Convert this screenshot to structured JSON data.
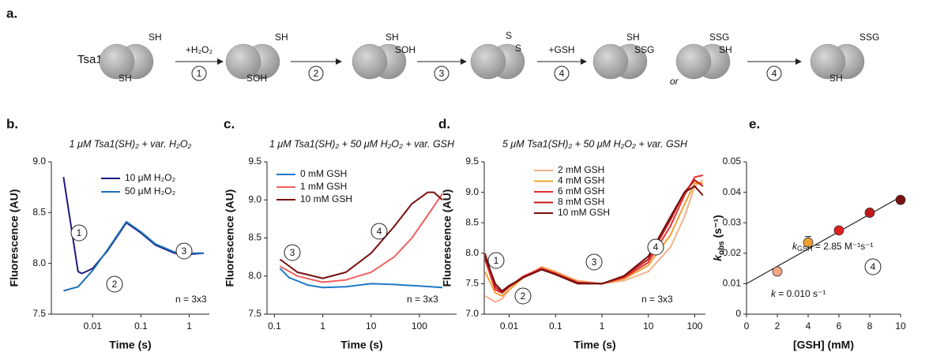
{
  "scheme": {
    "label": "a.",
    "protein": "Tsa1",
    "groups": [
      [
        "SH",
        "SH"
      ],
      [
        "SH",
        "SOH"
      ],
      [
        "SH",
        "SOH"
      ],
      [
        "S",
        "S"
      ],
      [
        "SH",
        "SSG"
      ],
      [
        "SSG",
        "SH"
      ],
      [
        "SSG",
        "SH"
      ]
    ],
    "arrows": [
      {
        "reagent": "+H₂O₂",
        "step": "1"
      },
      {
        "step": "2"
      },
      {
        "step": "3"
      },
      {
        "reagent": "+GSH",
        "step": "4"
      },
      {
        "step": "4"
      }
    ],
    "or": "or"
  },
  "chart_data": [
    {
      "type": "line",
      "panel": "b.",
      "title": "1 μM Tsa1(SH)₂ + var. H₂O₂",
      "xlabel": "Time (s)",
      "ylabel": "Fluorescence (AU)",
      "log_x": true,
      "xlim": [
        0.0014,
        2.6
      ],
      "xticks": [
        0.01,
        0.1,
        1
      ],
      "ylim": [
        7.5,
        9.0
      ],
      "yticks": [
        7.5,
        {
          "value": 8,
          "label": "8.0"
        },
        8.5,
        {
          "value": 9,
          "label": "9.0"
        }
      ],
      "series": [
        {
          "name": "10 μM H₂O₂",
          "color": "#1b1b80",
          "x": [
            0.0025,
            0.005,
            0.006,
            0.01,
            0.02,
            0.05,
            0.1,
            0.2,
            0.5,
            1,
            2
          ],
          "values": [
            8.85,
            7.92,
            7.9,
            7.95,
            8.12,
            8.4,
            8.3,
            8.18,
            8.1,
            8.09,
            8.1
          ]
        },
        {
          "name": "50 μM H₂O₂",
          "color": "#1f6fb5",
          "x": [
            0.0025,
            0.005,
            0.01,
            0.02,
            0.05,
            0.1,
            0.2,
            0.5,
            1,
            2
          ],
          "values": [
            7.73,
            7.77,
            7.93,
            8.13,
            8.41,
            8.31,
            8.19,
            8.11,
            8.1,
            8.1
          ]
        }
      ],
      "annotations": [
        "1",
        "2",
        "3"
      ],
      "note": "n = 3x3"
    },
    {
      "type": "line",
      "panel": "c.",
      "title": "1 μM Tsa1(SH)₂ + 50 μM H₂O₂ + var. GSH",
      "xlabel": "Time (s)",
      "ylabel": "Fluorescence (AU)",
      "log_x": true,
      "xlim": [
        0.07,
        590
      ],
      "xticks": [
        0.1,
        1,
        10,
        100
      ],
      "ylim": [
        7.5,
        9.5
      ],
      "yticks": [
        7.5,
        {
          "value": 8,
          "label": "8.0"
        },
        8.5,
        {
          "value": 9,
          "label": "9.0"
        },
        9.5
      ],
      "series": [
        {
          "name": "0 mM GSH",
          "color": "#1f78c8",
          "x": [
            0.13,
            0.2,
            0.5,
            1,
            3,
            10,
            30,
            100,
            300
          ],
          "values": [
            8.1,
            7.98,
            7.88,
            7.85,
            7.86,
            7.9,
            7.89,
            7.87,
            7.85
          ]
        },
        {
          "name": "1 mM GSH",
          "color": "#f06060",
          "x": [
            0.13,
            0.3,
            1,
            3,
            10,
            30,
            70,
            150,
            300
          ],
          "values": [
            8.13,
            8.0,
            7.92,
            7.95,
            8.05,
            8.25,
            8.5,
            8.8,
            9.08
          ]
        },
        {
          "name": "10 mM GSH",
          "color": "#7a1010",
          "x": [
            0.13,
            0.3,
            1,
            3,
            10,
            30,
            70,
            150,
            200,
            300
          ],
          "values": [
            8.22,
            8.05,
            7.97,
            8.05,
            8.3,
            8.65,
            8.95,
            9.1,
            9.1,
            9.0
          ]
        }
      ],
      "annotations": [
        "3",
        "4"
      ],
      "note": "n = 3x3"
    },
    {
      "type": "line",
      "panel": "d.",
      "title": "5 μM Tsa1(SH)₂ + 50 μM H₂O₂ + var. GSH",
      "xlabel": "Time (s)",
      "ylabel": "Fluorescence (AU)",
      "log_x": true,
      "xlim": [
        0.0029,
        170
      ],
      "xticks": [
        0.01,
        0.1,
        1,
        10,
        100
      ],
      "ylim": [
        7.0,
        9.5
      ],
      "yticks": [
        {
          "value": 7,
          "label": "7.0"
        },
        7.5,
        {
          "value": 8,
          "label": "8.0"
        },
        8.5,
        {
          "value": 9,
          "label": "9.0"
        },
        9.5
      ],
      "series": [
        {
          "name": "2 mM GSH",
          "color": "#f5b08a",
          "x": [
            0.003,
            0.005,
            0.007,
            0.01,
            0.02,
            0.05,
            0.1,
            0.3,
            1,
            3,
            10,
            30,
            60,
            100,
            150
          ],
          "values": [
            7.3,
            7.2,
            7.25,
            7.4,
            7.6,
            7.78,
            7.7,
            7.55,
            7.5,
            7.55,
            7.7,
            8.1,
            8.6,
            9.1,
            9.2
          ]
        },
        {
          "name": "4 mM GSH",
          "color": "#f0a030",
          "x": [
            0.003,
            0.005,
            0.007,
            0.01,
            0.02,
            0.05,
            0.1,
            0.3,
            1,
            3,
            10,
            30,
            60,
            100,
            150
          ],
          "values": [
            7.7,
            7.35,
            7.3,
            7.4,
            7.6,
            7.76,
            7.68,
            7.53,
            7.5,
            7.58,
            7.8,
            8.3,
            8.8,
            9.15,
            9.15
          ]
        },
        {
          "name": "6 mM GSH",
          "color": "#e83030",
          "x": [
            0.003,
            0.005,
            0.007,
            0.01,
            0.02,
            0.05,
            0.1,
            0.3,
            1,
            3,
            10,
            30,
            60,
            100,
            150
          ],
          "values": [
            7.9,
            7.4,
            7.35,
            7.45,
            7.62,
            7.75,
            7.67,
            7.52,
            7.5,
            7.6,
            7.85,
            8.45,
            8.95,
            9.25,
            9.28
          ]
        },
        {
          "name": "8 mM GSH",
          "color": "#c01818",
          "x": [
            0.003,
            0.005,
            0.007,
            0.01,
            0.02,
            0.05,
            0.1,
            0.3,
            1,
            3,
            10,
            30,
            60,
            100,
            150
          ],
          "values": [
            8.0,
            7.45,
            7.35,
            7.45,
            7.6,
            7.74,
            7.66,
            7.52,
            7.5,
            7.62,
            7.9,
            8.55,
            9.0,
            9.2,
            9.1
          ]
        },
        {
          "name": "10 mM GSH",
          "color": "#701010",
          "x": [
            0.003,
            0.005,
            0.007,
            0.01,
            0.02,
            0.05,
            0.1,
            0.3,
            1,
            3,
            10,
            30,
            60,
            100,
            150
          ],
          "values": [
            7.95,
            7.5,
            7.38,
            7.47,
            7.6,
            7.73,
            7.65,
            7.5,
            7.5,
            7.63,
            7.95,
            8.6,
            9.0,
            9.1,
            8.95
          ]
        }
      ],
      "annotations": [
        "1",
        "2",
        "3",
        "4"
      ],
      "note": "n = 3x3"
    },
    {
      "type": "scatter",
      "panel": "e.",
      "xlabel": "[GSH] (mM)",
      "ylabel": {
        "k": "k",
        "sub": "obs",
        "unit": " (s⁻¹)"
      },
      "xlim": [
        0,
        10
      ],
      "xticks": [
        0,
        2,
        4,
        6,
        8,
        10
      ],
      "ylim": [
        0,
        0.05
      ],
      "yticks": [
        0,
        0.01,
        0.02,
        0.03,
        0.04,
        0.05
      ],
      "x": [
        2,
        4,
        6,
        8,
        10
      ],
      "values": [
        0.014,
        0.0235,
        0.0275,
        0.0333,
        0.0375
      ],
      "errors": [
        null,
        0.002,
        null,
        null,
        null
      ],
      "colors": [
        "#f4a582",
        "#f0a030",
        "#e02020",
        "#c01818",
        "#7a1010"
      ],
      "fit": {
        "color": "#222",
        "x": [
          0,
          10
        ],
        "values": [
          0.01,
          0.0385
        ]
      },
      "annotations": [
        "4"
      ],
      "rate": {
        "k": "k",
        "sub": "GSH",
        "rest": " = 2.85 M⁻¹s⁻¹"
      },
      "intercept": {
        "k": "k",
        "rest": " = 0.010 s⁻¹"
      }
    }
  ]
}
